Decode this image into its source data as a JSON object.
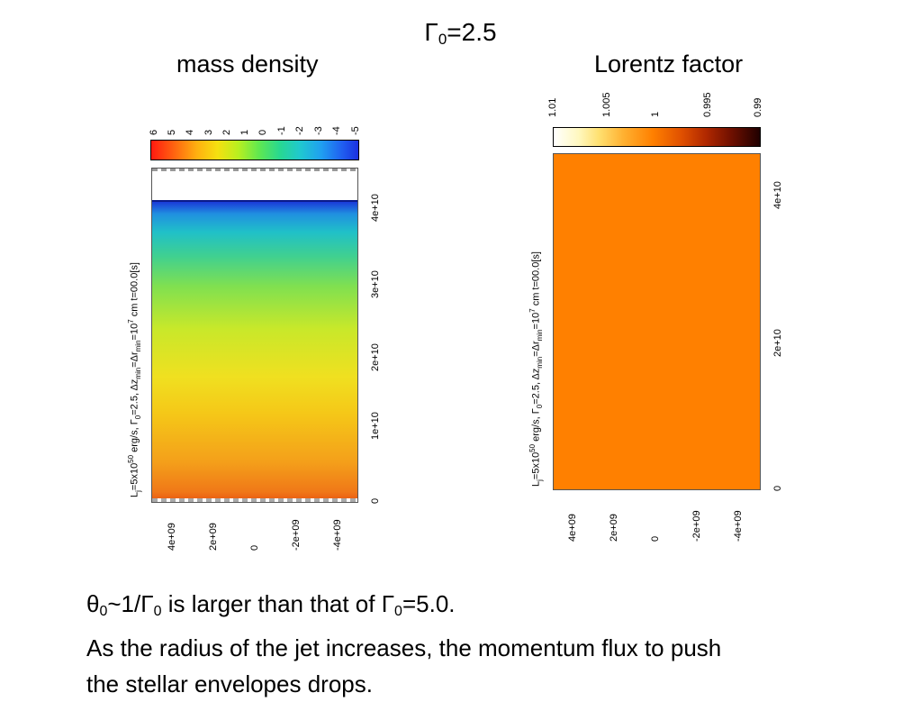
{
  "slide": {
    "title_main": "Γ",
    "title_sub": "0",
    "title_rest": "=2.5"
  },
  "left_panel": {
    "heading": "mass density",
    "colorbar_ticks": [
      "6",
      "5",
      "4",
      "3",
      "2",
      "1",
      "0",
      "-1",
      "-2",
      "-3",
      "-4",
      "-5"
    ],
    "vertical_label": {
      "p1": "L",
      "p1_sub": "j",
      "p2": "=5x10",
      "p2_sup": "50",
      "p3": " erg/s, Γ",
      "p3_sub": "0",
      "p4": "=2.5, Δz",
      "p4_sub": "min",
      "p5": "=Δr",
      "p5_sub": "min",
      "p6": "=10",
      "p6_sup": "7",
      "p7": " cm t=00.0[s]"
    },
    "z_ticks": [
      "0",
      "1e+10",
      "2e+10",
      "3e+10",
      "4e+10"
    ],
    "r_ticks": [
      "4e+09",
      "2e+09",
      "0",
      "-2e+09",
      "-4e+09"
    ],
    "colors": {
      "bottom": "#f08a1e",
      "mid_low": "#f5c21c",
      "mid": "#c8e02a",
      "mid_high": "#4fd07a",
      "upper": "#26b7c8",
      "top": "#1d5ad8"
    }
  },
  "right_panel": {
    "heading": "Lorentz factor",
    "colorbar_ticks": [
      "1.01",
      "1.005",
      "1",
      "0.995",
      "0.99"
    ],
    "vertical_label": {
      "p1": "L",
      "p1_sub": "j",
      "p2": "=5x10",
      "p2_sup": "50",
      "p3": " erg/s, Γ",
      "p3_sub": "0",
      "p4": "=2.5, Δz",
      "p4_sub": "min",
      "p5": "=Δr",
      "p5_sub": "min",
      "p6": "=10",
      "p6_sup": "7",
      "p7": " cm t=00.0[s]"
    },
    "z_ticks": [
      "0",
      "2e+10",
      "4e+10"
    ],
    "r_ticks": [
      "4e+09",
      "2e+09",
      "0",
      "-2e+09",
      "-4e+09"
    ],
    "colors": {
      "field": "#ff8000"
    }
  },
  "caption": {
    "line1_a": "θ",
    "line1_a_sub": "0",
    "line1_b": "~1/Γ",
    "line1_b_sub": "0",
    "line1_c": " is larger than that of Γ",
    "line1_c_sub": "0",
    "line1_d": "=5.0.",
    "line2": "As the radius of the jet increases, the momentum flux to push",
    "line3": "the stellar envelopes drops."
  }
}
